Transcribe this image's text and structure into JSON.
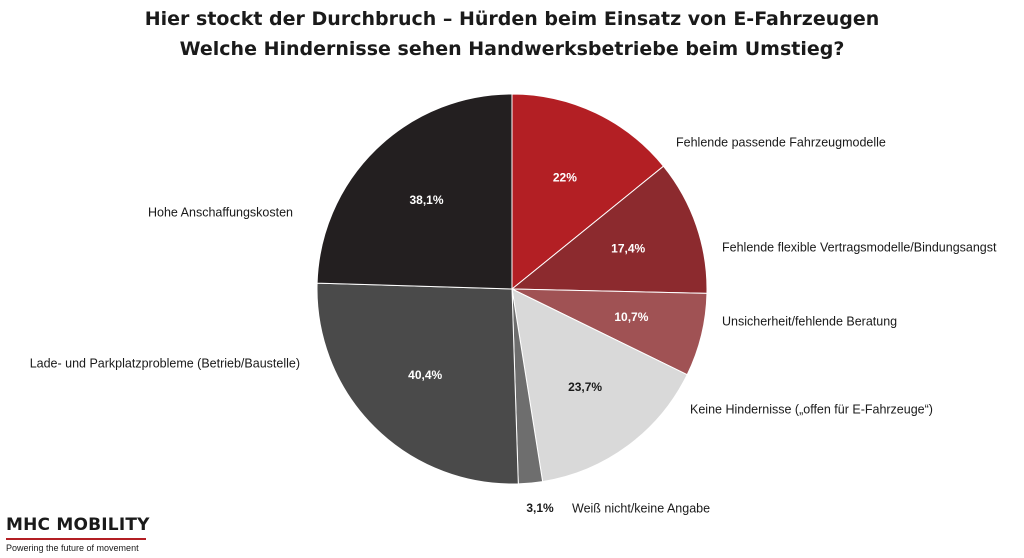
{
  "title": "Hier stockt der Durchbruch – Hürden beim Einsatz von E-Fahrzeugen",
  "subtitle": "Welche Hindernisse sehen Handwerksbetriebe beim Umstieg?",
  "brand": {
    "name": "MHC MOBILITY",
    "tagline": "Powering the future of movement"
  },
  "chart_data": {
    "type": "pie",
    "title": "Hier stockt der Durchbruch – Hürden beim Einsatz von E-Fahrzeugen",
    "subtitle": "Welche Hindernisse sehen Handwerksbetriebe beim Umstieg?",
    "start_angle_deg": 0,
    "direction": "clockwise",
    "slices": [
      {
        "label": "Fehlende passende Fahrzeugmodelle",
        "value": 22,
        "display": "22%",
        "color": "#b31f24",
        "text_color": "#ffffff"
      },
      {
        "label": "Fehlende flexible Vertragsmodelle/Bindungsangst",
        "value": 17.4,
        "display": "17,4%",
        "color": "#8c2a2e",
        "text_color": "#ffffff"
      },
      {
        "label": "Unsicherheit/fehlende Beratung",
        "value": 10.7,
        "display": "10,7%",
        "color": "#a05254",
        "text_color": "#ffffff"
      },
      {
        "label": "Keine Hindernisse („offen für E-Fahrzeuge“)",
        "value": 23.7,
        "display": "23,7%",
        "color": "#d9d9d9",
        "text_color": "#1a1a1a"
      },
      {
        "label": "Weiß nicht/keine Angabe",
        "value": 3.1,
        "display": "3,1%",
        "color": "#6e6e6e",
        "text_color": "#1a1a1a"
      },
      {
        "label": "Lade- und Parkplatzprobleme (Betrieb/Baustelle)",
        "value": 40.4,
        "display": "40,4%",
        "color": "#4a4a4a",
        "text_color": "#ffffff"
      },
      {
        "label": "Hohe Anschaffungskosten",
        "value": 38.1,
        "display": "38,1%",
        "color": "#231f20",
        "text_color": "#ffffff"
      }
    ]
  }
}
